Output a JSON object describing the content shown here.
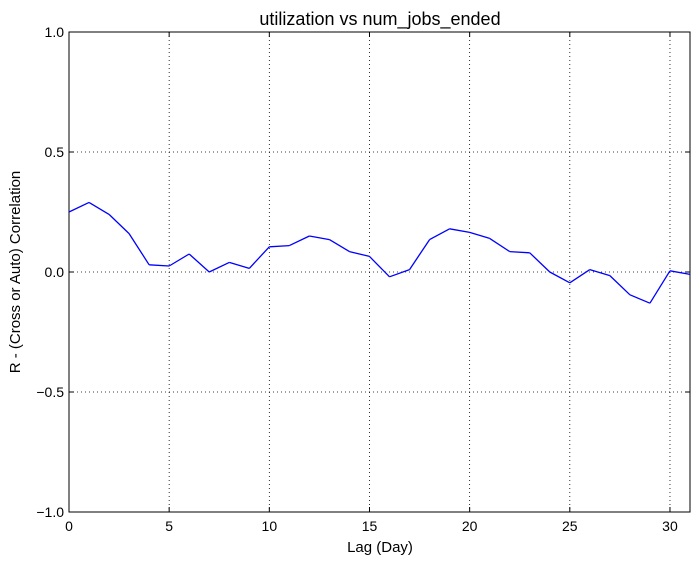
{
  "chart_data": {
    "type": "line",
    "title": "utilization vs num_jobs_ended",
    "xlabel": "Lag (Day)",
    "ylabel": "R - (Cross or Auto) Correlation",
    "xlim": [
      0,
      31
    ],
    "ylim": [
      -1.0,
      1.0
    ],
    "x_ticks": [
      0,
      5,
      10,
      15,
      20,
      25,
      30
    ],
    "y_ticks": [
      -1.0,
      -0.5,
      0.0,
      0.5,
      1.0
    ],
    "x_tick_labels": [
      "0",
      "5",
      "10",
      "15",
      "20",
      "25",
      "30"
    ],
    "y_tick_labels": [
      "−1.0",
      "−0.5",
      "0.0",
      "0.5",
      "1.0"
    ],
    "grid": true,
    "series": [
      {
        "color": "#0000ff",
        "x": [
          0,
          1,
          2,
          3,
          4,
          5,
          6,
          7,
          8,
          9,
          10,
          11,
          12,
          13,
          14,
          15,
          16,
          17,
          18,
          19,
          20,
          21,
          22,
          23,
          24,
          25,
          26,
          27,
          28,
          29,
          30,
          31
        ],
        "values": [
          0.25,
          0.29,
          0.24,
          0.16,
          0.03,
          0.025,
          0.075,
          0.0,
          0.04,
          0.015,
          0.105,
          0.11,
          0.15,
          0.135,
          0.085,
          0.065,
          -0.02,
          0.01,
          0.135,
          0.18,
          0.165,
          0.14,
          0.085,
          0.08,
          0.0,
          -0.045,
          0.01,
          -0.015,
          -0.095,
          -0.13,
          0.005,
          -0.01
        ]
      }
    ]
  }
}
